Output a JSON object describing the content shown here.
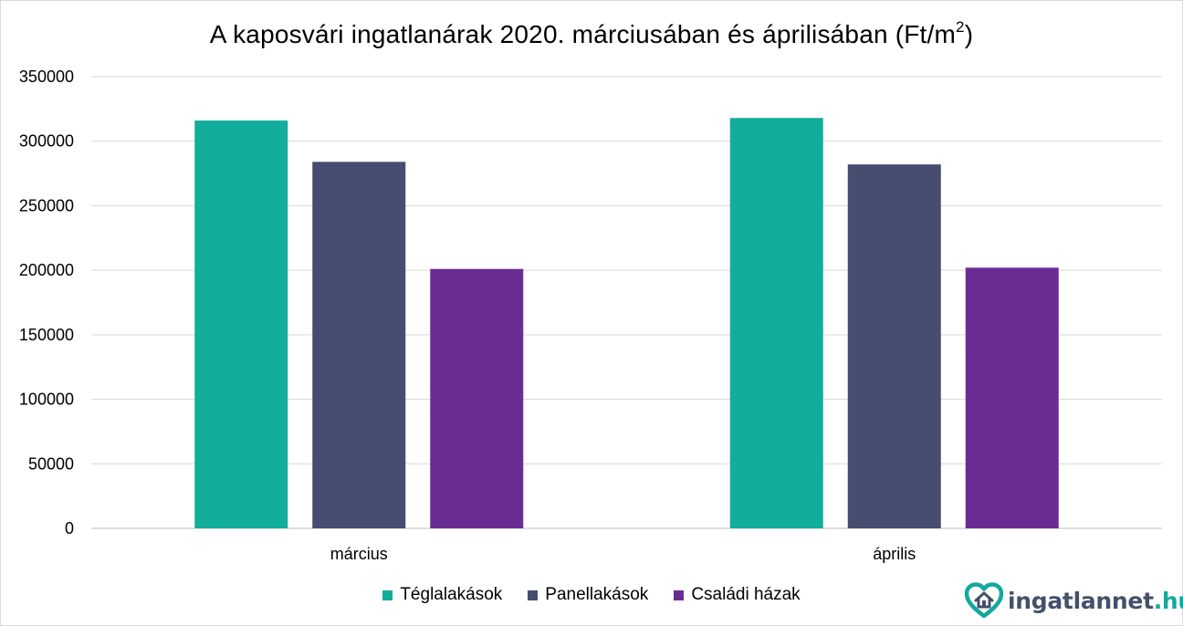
{
  "chart_data": {
    "type": "bar",
    "title": "A kaposvári ingatlanárak 2020. márciusában és áprilisában (Ft/m",
    "title_sup": "2",
    "title_end": ")",
    "categories": [
      "március",
      "április"
    ],
    "series": [
      {
        "name": "Téglalakások",
        "color": "#12ad9b",
        "values": [
          316000,
          318000
        ]
      },
      {
        "name": "Panellakások",
        "color": "#464d70",
        "values": [
          284000,
          282000
        ]
      },
      {
        "name": "Családi házak",
        "color": "#6a2c93",
        "values": [
          201000,
          202000
        ]
      }
    ],
    "ylim": [
      0,
      350000
    ],
    "yticks": [
      "0",
      "50000",
      "100000",
      "150000",
      "200000",
      "250000",
      "300000",
      "350000"
    ],
    "grid": true,
    "legend_position": "bottom"
  },
  "logo": {
    "name": "ingatlannet",
    "tld": ".hu",
    "icon": "house-heart-icon",
    "color": "#13a89e"
  }
}
